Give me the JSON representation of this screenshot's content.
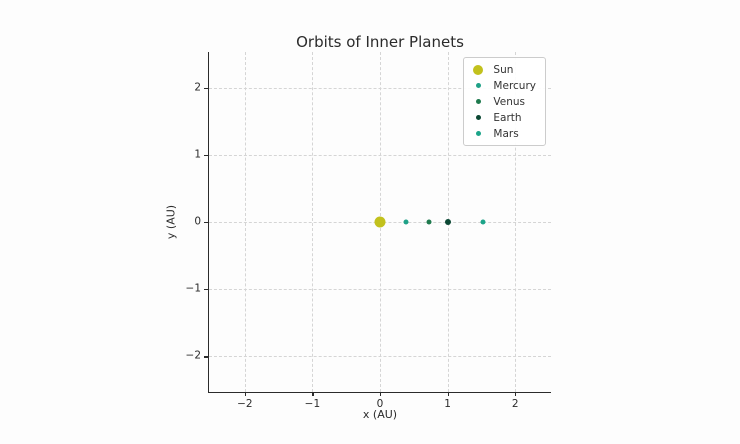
{
  "chart_data": {
    "type": "scatter",
    "title": "Orbits of Inner Planets",
    "xlabel": "x (AU)",
    "ylabel": "y (AU)",
    "xlim": [
      -2.53,
      2.53
    ],
    "ylim": [
      -2.53,
      2.53
    ],
    "xticks": [
      -2,
      -1,
      0,
      1,
      2
    ],
    "yticks": [
      -2,
      -1,
      0,
      1,
      2
    ],
    "grid": "dashed",
    "legend_position": "upper-right",
    "series": [
      {
        "name": "Sun",
        "x": 0.0,
        "y": 0.0,
        "color": "#c2c11d",
        "size": 11,
        "legend_size": 10
      },
      {
        "name": "Mercury",
        "x": 0.39,
        "y": 0.0,
        "color": "#1fa187",
        "size": 5,
        "legend_size": 5
      },
      {
        "name": "Venus",
        "x": 0.72,
        "y": 0.0,
        "color": "#1f7a4e",
        "size": 5,
        "legend_size": 5
      },
      {
        "name": "Earth",
        "x": 1.0,
        "y": 0.0,
        "color": "#0b4733",
        "size": 6,
        "legend_size": 5
      },
      {
        "name": "Mars",
        "x": 1.53,
        "y": 0.0,
        "color": "#1ca489",
        "size": 5,
        "legend_size": 5
      }
    ],
    "colors": {
      "background": "#fdfdfd",
      "spine": "#2b2b2b",
      "grid": "#d5d5d5",
      "text": "#2b2b2b",
      "legend_border": "#cccccc"
    }
  }
}
